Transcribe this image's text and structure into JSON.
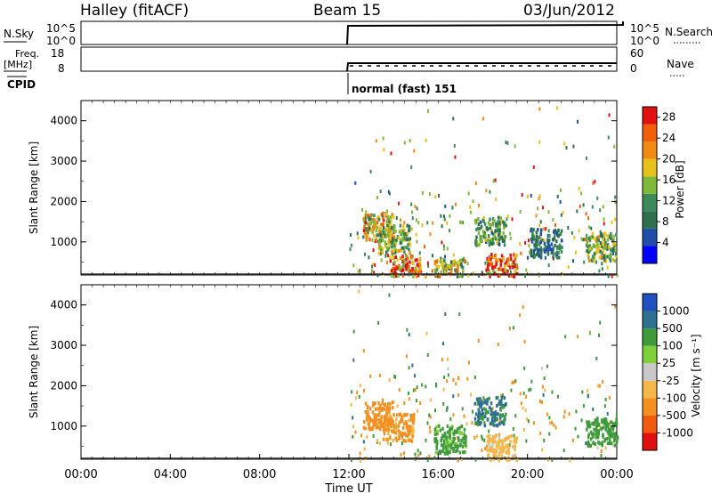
{
  "header": {
    "station": "Halley (fitACF)",
    "beam": "Beam 15",
    "date": "03/Jun/2012"
  },
  "panels": {
    "nsky": {
      "label": "N.Sky",
      "right_label": "N.Search",
      "left_ticks": [
        "10^5",
        "10^0"
      ],
      "right_ticks": [
        "10^5",
        "10^0"
      ]
    },
    "freq": {
      "label_line1": "Freq.",
      "label_line2": "[MHz]",
      "right_label": "Nave",
      "left_ticks": [
        "18",
        "8"
      ],
      "right_ticks": [
        "60",
        "0"
      ]
    },
    "cpid": {
      "label": "CPID",
      "mode": "normal (fast) 151"
    }
  },
  "colors": {
    "power_scale": [
      "#0000ff",
      "#1f4fa8",
      "#2f6f4f",
      "#3c8a5a",
      "#7fb93a",
      "#e8c21a",
      "#f08a12",
      "#f25f0a",
      "#e21010"
    ],
    "velocity_scale": [
      "#e01010",
      "#f25a10",
      "#f39020",
      "#f6b84a",
      "#c8c8c8",
      "#7fcf3a",
      "#3f9a3a",
      "#2f6f8f",
      "#2050c0"
    ]
  },
  "chart_data": [
    {
      "type": "heatmap",
      "title": "",
      "ylabel": "Slant Range [km]",
      "ylim": [
        180,
        4500
      ],
      "y_ticks": [
        "1000",
        "2000",
        "3000",
        "4000"
      ],
      "colorbar": {
        "label": "Power [dB]",
        "ticks": [
          "4",
          "8",
          "12",
          "16",
          "20",
          "24",
          "28"
        ],
        "range": [
          0,
          30
        ]
      },
      "data_start_time": "12:00",
      "blobs": [
        {
          "t": 13.3,
          "r": 1400,
          "value": 18
        },
        {
          "t": 14.0,
          "r": 1100,
          "value": 14
        },
        {
          "t": 14.5,
          "r": 350,
          "value": 24
        },
        {
          "t": 16.5,
          "r": 300,
          "value": 16
        },
        {
          "t": 18.3,
          "r": 1300,
          "value": 12
        },
        {
          "t": 18.8,
          "r": 380,
          "value": 26
        },
        {
          "t": 20.8,
          "r": 1000,
          "value": 8
        },
        {
          "t": 23.3,
          "r": 900,
          "value": 14
        }
      ]
    },
    {
      "type": "heatmap",
      "title": "",
      "ylabel": "Slant Range [km]",
      "ylim": [
        180,
        4500
      ],
      "y_ticks": [
        "1000",
        "2000",
        "3000",
        "4000"
      ],
      "colorbar": {
        "label": "Velocity [m s⁻¹]",
        "ticks": [
          "-1000",
          "-500",
          "-100",
          "-25",
          "25",
          "100",
          "500",
          "1000"
        ]
      },
      "data_start_time": "12:00",
      "blobs": [
        {
          "t": 13.3,
          "r": 1300,
          "value": -300
        },
        {
          "t": 14.2,
          "r": 1000,
          "value": -150
        },
        {
          "t": 16.5,
          "r": 700,
          "value": 150
        },
        {
          "t": 18.3,
          "r": 1400,
          "value": 600
        },
        {
          "t": 18.8,
          "r": 450,
          "value": -40
        },
        {
          "t": 23.3,
          "r": 900,
          "value": 200
        }
      ]
    }
  ],
  "x_axis": {
    "label": "Time UT",
    "ticks": [
      "00:00",
      "04:00",
      "08:00",
      "12:00",
      "16:00",
      "20:00",
      "00:00"
    ]
  }
}
